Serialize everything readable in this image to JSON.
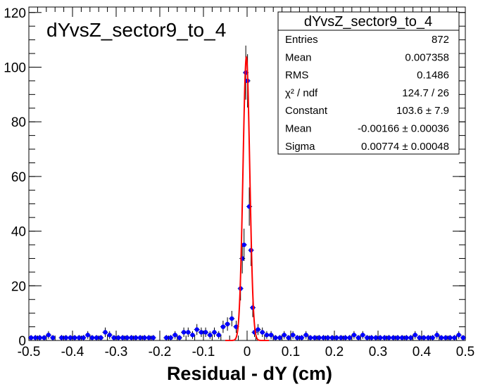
{
  "chart_data": {
    "type": "scatter",
    "title": "dYvsZ_sector9_to_4",
    "xlabel": "Residual - dY (cm)",
    "ylabel": "",
    "xlim": [
      -0.5,
      0.5
    ],
    "ylim": [
      0,
      122
    ],
    "x_ticks": [
      "-0.5",
      "-0.4",
      "-0.3",
      "-0.2",
      "-0.1",
      "0",
      "0.1",
      "0.2",
      "0.3",
      "0.4",
      "0.5"
    ],
    "y_ticks": [
      "0",
      "20",
      "40",
      "60",
      "80",
      "100",
      "120"
    ],
    "grid": false,
    "marker_color": "#0000ff",
    "fit_color": "#ff0000",
    "series": [
      {
        "type": "scatter",
        "x": [
          -0.495,
          -0.485,
          -0.475,
          -0.465,
          -0.455,
          -0.445,
          -0.425,
          -0.415,
          -0.405,
          -0.395,
          -0.385,
          -0.375,
          -0.365,
          -0.355,
          -0.345,
          -0.335,
          -0.325,
          -0.315,
          -0.305,
          -0.295,
          -0.285,
          -0.275,
          -0.265,
          -0.255,
          -0.245,
          -0.235,
          -0.225,
          -0.215,
          -0.185,
          -0.175,
          -0.165,
          -0.155,
          -0.145,
          -0.135,
          -0.125,
          -0.115,
          -0.105,
          -0.095,
          -0.085,
          -0.075,
          -0.065,
          -0.055,
          -0.045,
          -0.035,
          -0.025,
          -0.015,
          -0.011,
          -0.007,
          -0.003,
          0.001,
          0.005,
          0.009,
          0.013,
          0.017,
          0.025,
          0.035,
          0.045,
          0.055,
          0.065,
          0.075,
          0.085,
          0.095,
          0.105,
          0.115,
          0.125,
          0.135,
          0.145,
          0.155,
          0.165,
          0.175,
          0.185,
          0.195,
          0.205,
          0.215,
          0.225,
          0.235,
          0.245,
          0.255,
          0.265,
          0.275,
          0.285,
          0.295,
          0.305,
          0.315,
          0.325,
          0.335,
          0.345,
          0.355,
          0.365,
          0.375,
          0.385,
          0.395,
          0.405,
          0.415,
          0.425,
          0.435,
          0.445,
          0.455,
          0.465,
          0.475,
          0.485,
          0.495
        ],
        "y": [
          1,
          1,
          1,
          1,
          2,
          1,
          1,
          1,
          1,
          1,
          1,
          1,
          2,
          1,
          1,
          1,
          3,
          2,
          1,
          1,
          1,
          1,
          1,
          1,
          1,
          1,
          1,
          1,
          1,
          1,
          2,
          1,
          3,
          3,
          2,
          4,
          3,
          3,
          2,
          3,
          2,
          5,
          6,
          8,
          5,
          19,
          30,
          35,
          98,
          95,
          49,
          33,
          12,
          3,
          4,
          3,
          2,
          2,
          1,
          1,
          2,
          1,
          2,
          1,
          1,
          2,
          1,
          1,
          1,
          1,
          1,
          1,
          1,
          1,
          1,
          1,
          2,
          1,
          2,
          1,
          1,
          1,
          1,
          1,
          1,
          1,
          1,
          1,
          1,
          1,
          2,
          1,
          1,
          1,
          1,
          2,
          1,
          1,
          1,
          1,
          2,
          1
        ]
      }
    ],
    "fit": {
      "function": "gaus",
      "constant": 103.6,
      "mean": -0.00166,
      "sigma": 0.00774
    },
    "stats_box": {
      "title": "dYvsZ_sector9_to_4",
      "rows": [
        {
          "label": "Entries",
          "value": "872"
        },
        {
          "label": "Mean",
          "value": "0.007358"
        },
        {
          "label": "RMS",
          "value": "0.1486"
        },
        {
          "label": "χ² / ndf",
          "value": "124.7 / 26"
        },
        {
          "label": "Constant",
          "value": "103.6 ± 7.9"
        },
        {
          "label": "Mean",
          "value": "-0.00166 ± 0.00036"
        },
        {
          "label": "Sigma",
          "value": "0.00774 ± 0.00048"
        }
      ]
    }
  }
}
